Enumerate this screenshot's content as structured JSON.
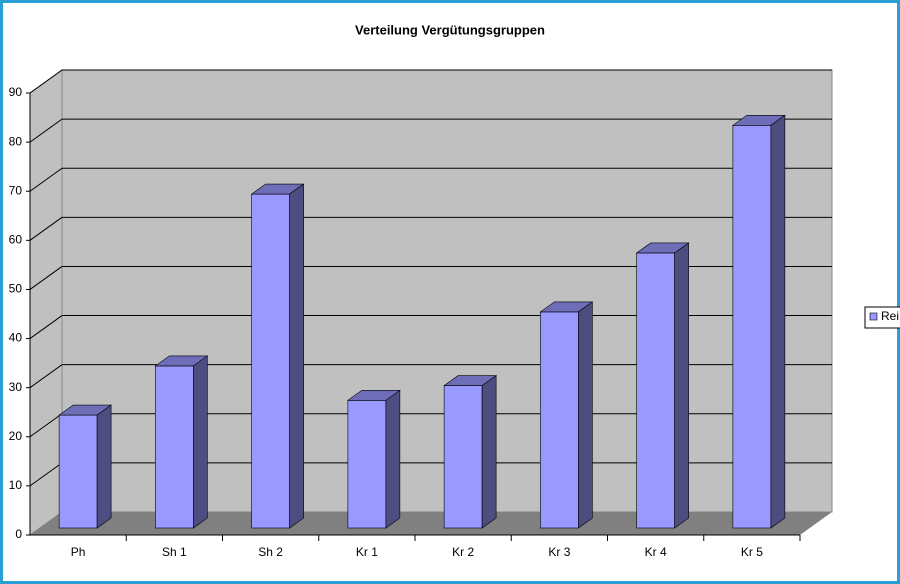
{
  "chart_data": {
    "type": "bar",
    "title": "Verteilung Vergütungsgruppen",
    "categories": [
      "Ph",
      "Sh 1",
      "Sh 2",
      "Kr 1",
      "Kr 2",
      "Kr 3",
      "Kr 4",
      "Kr 5"
    ],
    "series": [
      {
        "name": "Rei",
        "color": "#9999ff",
        "values": [
          23,
          33,
          68,
          26,
          29,
          44,
          56,
          82
        ]
      }
    ],
    "ylim": [
      0,
      90
    ],
    "yticks": [
      0,
      10,
      20,
      30,
      40,
      50,
      60,
      70,
      80,
      90
    ],
    "grid": true,
    "legend": "right"
  }
}
